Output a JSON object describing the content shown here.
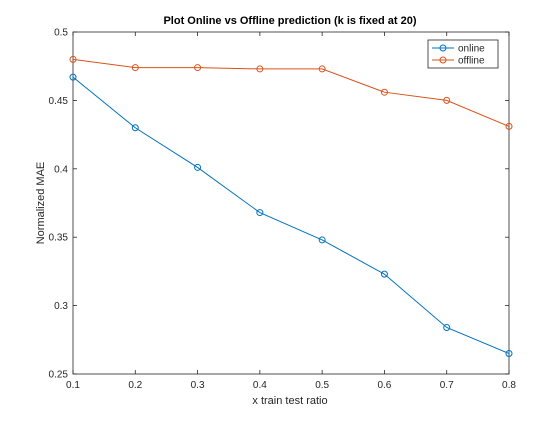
{
  "chart_data": {
    "type": "line",
    "title": "Plot Online vs Offline prediction (k is fixed at 20)",
    "xlabel": "x train test ratio",
    "ylabel": "Normalized MAE",
    "xlim": [
      0.1,
      0.8
    ],
    "ylim": [
      0.25,
      0.5
    ],
    "x_ticks": [
      "0.1",
      "0.2",
      "0.3",
      "0.4",
      "0.5",
      "0.6",
      "0.7",
      "0.8"
    ],
    "y_ticks": [
      "0.25",
      "0.3",
      "0.35",
      "0.4",
      "0.45",
      "0.5"
    ],
    "grid": false,
    "legend_position": "top-right",
    "marker": "circle",
    "x": [
      0.1,
      0.2,
      0.3,
      0.4,
      0.5,
      0.6,
      0.7,
      0.8
    ],
    "series": [
      {
        "name": "online",
        "color": "#0072BD",
        "values": [
          0.467,
          0.43,
          0.401,
          0.368,
          0.348,
          0.323,
          0.284,
          0.265
        ]
      },
      {
        "name": "offline",
        "color": "#D95319",
        "values": [
          0.48,
          0.474,
          0.474,
          0.473,
          0.473,
          0.456,
          0.45,
          0.431
        ]
      }
    ]
  }
}
